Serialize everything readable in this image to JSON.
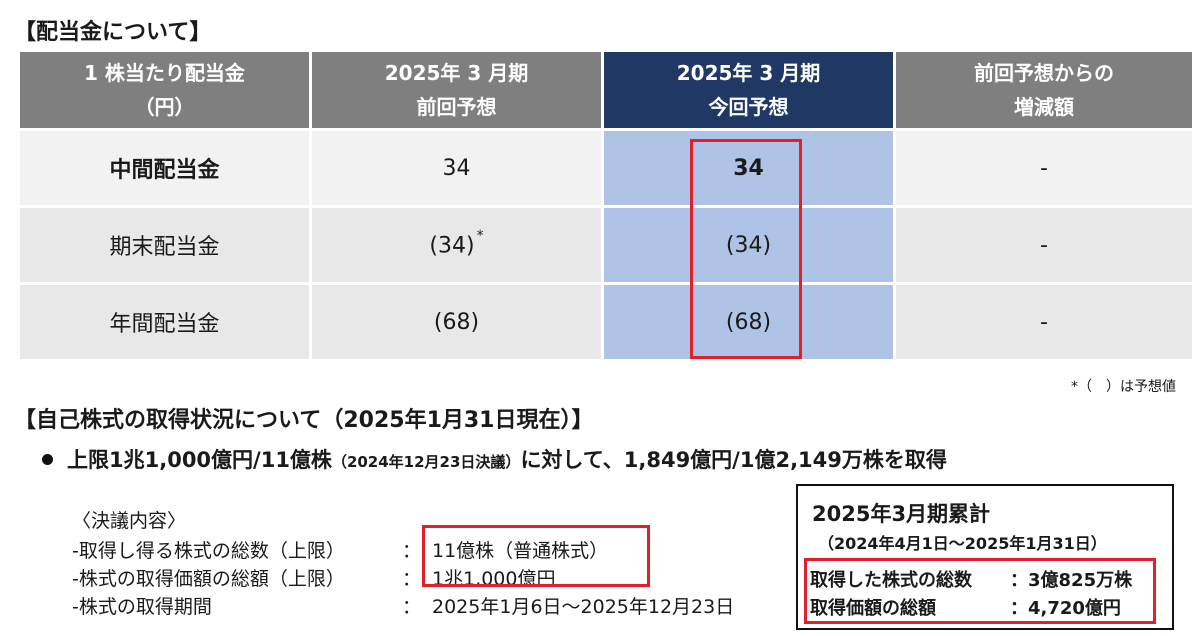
{
  "dividend_section": {
    "title": "【配当金について】",
    "table": {
      "headers": [
        [
          "1 株当たり配当金",
          "（円）"
        ],
        [
          "2025年 3 月期",
          "前回予想"
        ],
        [
          "2025年 3 月期",
          "今回予想"
        ],
        [
          "前回予想からの",
          "増減額"
        ]
      ],
      "rows": [
        {
          "label": "中間配当金",
          "prev": "34",
          "prev_mark": "",
          "curr": "34",
          "diff": "-"
        },
        {
          "label": "期末配当金",
          "prev": "(34)",
          "prev_mark": "*",
          "curr": "(34)",
          "diff": "-"
        },
        {
          "label": "年間配当金",
          "prev": "(68)",
          "prev_mark": "",
          "curr": "(68)",
          "diff": "-"
        }
      ],
      "highlight_color": "#e0202a"
    },
    "footnote": "*（　）は予想値"
  },
  "buyback_section": {
    "title": "【自己株式の取得状況について（2025年1月31日現在）】",
    "bullet_main1": "上限1兆1,000億円/11億株",
    "bullet_note": "（2024年12月23日決議）",
    "bullet_main2": "に対して、1,849億円/1億2,149万株を取得",
    "resolution": {
      "heading": "〈決議内容〉",
      "items": [
        {
          "label": "-取得し得る株式の総数（上限）",
          "colon": "：",
          "value": "11億株（普通株式）"
        },
        {
          "label": "-株式の取得価額の総額（上限）",
          "colon": "：",
          "value": "1兆1,000億円"
        },
        {
          "label": "-株式の取得期間",
          "colon": "：",
          "value": "2025年1月6日～2025年12月23日"
        }
      ]
    },
    "cumulative": {
      "title": "2025年3月期累計",
      "period": "（2024年4月1日～2025年1月31日）",
      "line1_label": "取得した株式の総数",
      "line1_value": "：3億825万株",
      "line2_label": "取得価額の総額",
      "line2_value": "：4,720億円"
    }
  }
}
